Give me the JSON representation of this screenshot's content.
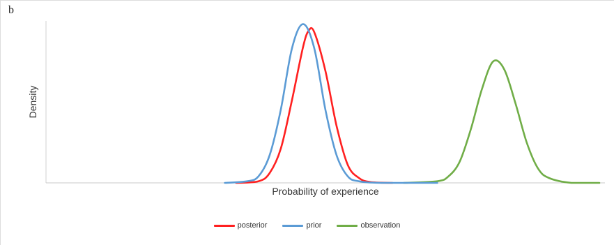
{
  "panel_label": "b",
  "chart_data": {
    "type": "line",
    "title": "",
    "xlabel": "Probability of experience",
    "ylabel": "Density",
    "xlim": [
      0,
      1
    ],
    "ylim": [
      0,
      1
    ],
    "grid": false,
    "legend_placement": "bottom-center",
    "series": [
      {
        "name": "posterior",
        "color": "#ff2020",
        "x": [
          0.34,
          0.38,
          0.4,
          0.42,
          0.44,
          0.46,
          0.47,
          0.48,
          0.5,
          0.52,
          0.54,
          0.56,
          0.58,
          0.62
        ],
        "values": [
          0.0,
          0.01,
          0.06,
          0.21,
          0.51,
          0.84,
          0.94,
          0.93,
          0.69,
          0.35,
          0.11,
          0.03,
          0.005,
          0.0
        ]
      },
      {
        "name": "prior",
        "color": "#5b9bd5",
        "x": [
          0.32,
          0.36,
          0.38,
          0.4,
          0.42,
          0.44,
          0.46,
          0.48,
          0.5,
          0.52,
          0.54,
          0.56,
          0.6,
          0.7
        ],
        "values": [
          0.0,
          0.01,
          0.04,
          0.17,
          0.45,
          0.83,
          0.98,
          0.83,
          0.45,
          0.17,
          0.04,
          0.01,
          0.0,
          0.0
        ]
      },
      {
        "name": "observation",
        "color": "#70ad47",
        "x": [
          0.64,
          0.7,
          0.72,
          0.74,
          0.76,
          0.78,
          0.8,
          0.82,
          0.84,
          0.86,
          0.88,
          0.9,
          0.94,
          0.99
        ],
        "values": [
          0.0,
          0.01,
          0.04,
          0.13,
          0.33,
          0.58,
          0.75,
          0.7,
          0.49,
          0.25,
          0.09,
          0.03,
          0.0,
          0.0
        ]
      }
    ]
  }
}
